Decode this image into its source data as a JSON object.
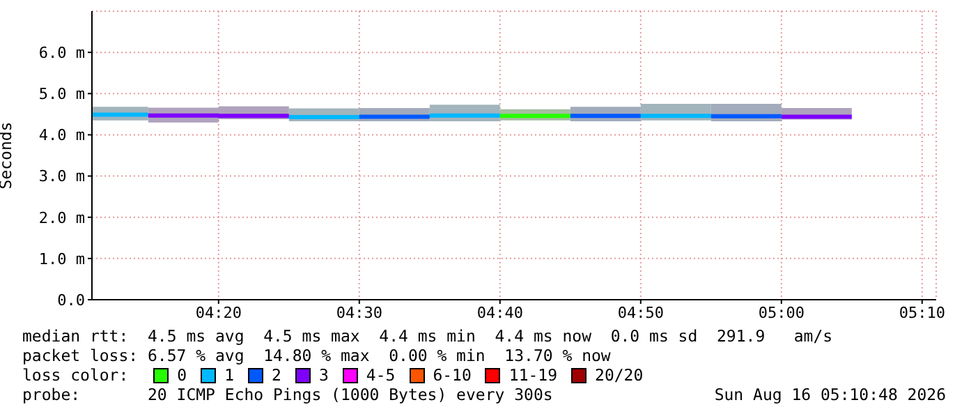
{
  "chart_data": {
    "type": "line",
    "ylabel": "Seconds",
    "legend_title": "loss color:",
    "legend": "bottom",
    "grid": true,
    "xlim": [
      "2026-08-16T04:11",
      "2026-08-16T05:11"
    ],
    "xticks": [
      {
        "value": "2026-08-16T04:20",
        "label": "04:20"
      },
      {
        "value": "2026-08-16T04:30",
        "label": "04:30"
      },
      {
        "value": "2026-08-16T04:40",
        "label": "04:40"
      },
      {
        "value": "2026-08-16T04:50",
        "label": "04:50"
      },
      {
        "value": "2026-08-16T05:00",
        "label": "05:00"
      },
      {
        "value": "2026-08-16T05:10",
        "label": "05:10"
      }
    ],
    "ylim": [
      0,
      7
    ],
    "yticks": [
      {
        "value": 0,
        "label": "0.0"
      },
      {
        "value": 1,
        "label": "1.0 m"
      },
      {
        "value": 2,
        "label": "2.0 m"
      },
      {
        "value": 3,
        "label": "3.0 m"
      },
      {
        "value": 4,
        "label": "4.0 m"
      },
      {
        "value": 5,
        "label": "5.0 m"
      },
      {
        "value": 6,
        "label": "6.0 m"
      }
    ],
    "series": [
      {
        "name": "0",
        "color": "#26ff00",
        "x": [
          "2026-08-16T04:40",
          "2026-08-16T04:45"
        ],
        "values": [
          4.46,
          4.46
        ],
        "lower": [
          4.35,
          4.35
        ],
        "upper": [
          4.62,
          4.62
        ]
      },
      {
        "name": "1",
        "color": "#00b8ff",
        "x": [
          "2026-08-16T04:11",
          "2026-08-16T04:15",
          null,
          "2026-08-16T04:25",
          "2026-08-16T04:30",
          null,
          "2026-08-16T04:35",
          "2026-08-16T04:40",
          null,
          "2026-08-16T04:50",
          "2026-08-16T04:55"
        ],
        "values": [
          4.49,
          4.49,
          null,
          4.43,
          4.43,
          null,
          4.47,
          4.47,
          null,
          4.46,
          4.46
        ],
        "lower": [
          4.35,
          4.35,
          null,
          4.33,
          4.33,
          null,
          4.33,
          4.33,
          null,
          4.35,
          4.35
        ],
        "upper": [
          4.68,
          4.68,
          null,
          4.64,
          4.64,
          null,
          4.73,
          4.73,
          null,
          4.75,
          4.75
        ]
      },
      {
        "name": "2",
        "color": "#0059ff",
        "x": [
          "2026-08-16T04:30",
          "2026-08-16T04:35",
          null,
          "2026-08-16T04:45",
          "2026-08-16T04:50",
          null,
          "2026-08-16T04:55",
          "2026-08-16T05:00"
        ],
        "values": [
          4.44,
          4.44,
          null,
          4.46,
          4.46,
          null,
          4.45,
          4.45
        ],
        "lower": [
          4.33,
          4.33,
          null,
          4.33,
          4.33,
          null,
          4.33,
          4.33
        ],
        "upper": [
          4.65,
          4.65,
          null,
          4.68,
          4.68,
          null,
          4.75,
          4.75
        ]
      },
      {
        "name": "3",
        "color": "#7e00ff",
        "x": [
          "2026-08-16T04:15",
          "2026-08-16T04:20",
          "2026-08-16T04:20",
          "2026-08-16T04:25",
          null,
          "2026-08-16T05:00",
          "2026-08-16T05:05"
        ],
        "values": [
          4.47,
          4.47,
          4.46,
          4.46,
          null,
          4.44,
          4.44
        ],
        "lower": [
          4.3,
          4.3,
          4.38,
          4.38,
          null,
          4.37,
          4.37
        ],
        "upper": [
          4.66,
          4.66,
          4.69,
          4.69,
          null,
          4.65,
          4.65
        ]
      },
      {
        "name": "4-5",
        "color": "#ff00ff"
      },
      {
        "name": "6-10",
        "color": "#ff5500"
      },
      {
        "name": "11-19",
        "color": "#ff0000"
      },
      {
        "name": "20/20",
        "color": "#a10000"
      }
    ],
    "annotations": [
      "median rtt:  4.5 ms avg  4.5 ms max  4.4 ms min  4.4 ms now  0.0 ms sd  291.9   am/s",
      "packet loss: 6.57 % avg  14.80 % max  0.00 % min  13.70 % now",
      "probe:       20 ICMP Echo Pings (1000 Bytes) every 300s",
      "Sun Aug 16 05:10:48 2026"
    ]
  }
}
